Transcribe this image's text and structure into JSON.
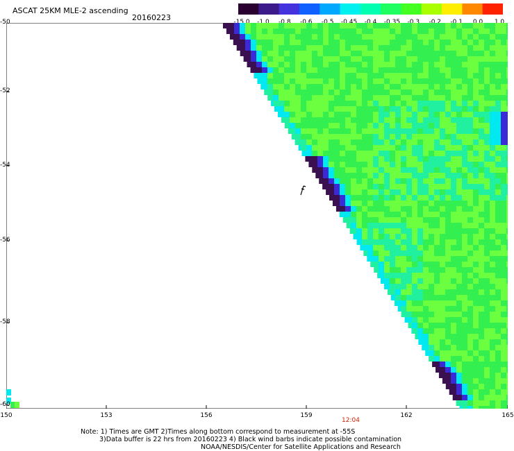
{
  "header": {
    "title": "ASCAT 25KM MLE-2 ascending",
    "date": "20160223"
  },
  "colorbar": {
    "labels": [
      "-15.0",
      "-1.0",
      "-0.8",
      "-0.6",
      "-0.5",
      "-0.45",
      "-0.4",
      "-0.35",
      "-0.3",
      "-0.2",
      "-0.1",
      "0.0",
      "1.0"
    ],
    "colors": [
      "#2a0030",
      "#3d1a8a",
      "#4433dd",
      "#1060ff",
      "#00a8ff",
      "#00f0f0",
      "#00ffb0",
      "#20ff60",
      "#44ff22",
      "#aaff00",
      "#ffee00",
      "#ff8800",
      "#ff2200"
    ]
  },
  "axes": {
    "lat_labels": [
      "-50",
      "-52",
      "-54",
      "-56",
      "-58",
      "-60"
    ],
    "lon_labels": [
      "150",
      "153",
      "156",
      "159",
      "162",
      "165"
    ]
  },
  "time_label": "12:04",
  "notes": {
    "line1": "Note: 1) Times are GMT 2)Times along bottom correspond to measurement at -55S",
    "line2": "3)Data buffer is 22 hrs from 20160223 4) Black wind barbs indicate possible contamination",
    "line3": "NOAA/NESDIS/Center for Satellite Applications and Research"
  },
  "swath_colors": {
    "edge_dark": "#3a1050",
    "edge_blue": "#3a2ad8",
    "edge_cyan": "#00e8f0",
    "field_green": "#33f050",
    "field_light": "#6cff40",
    "field_aqua": "#20f0a0"
  }
}
